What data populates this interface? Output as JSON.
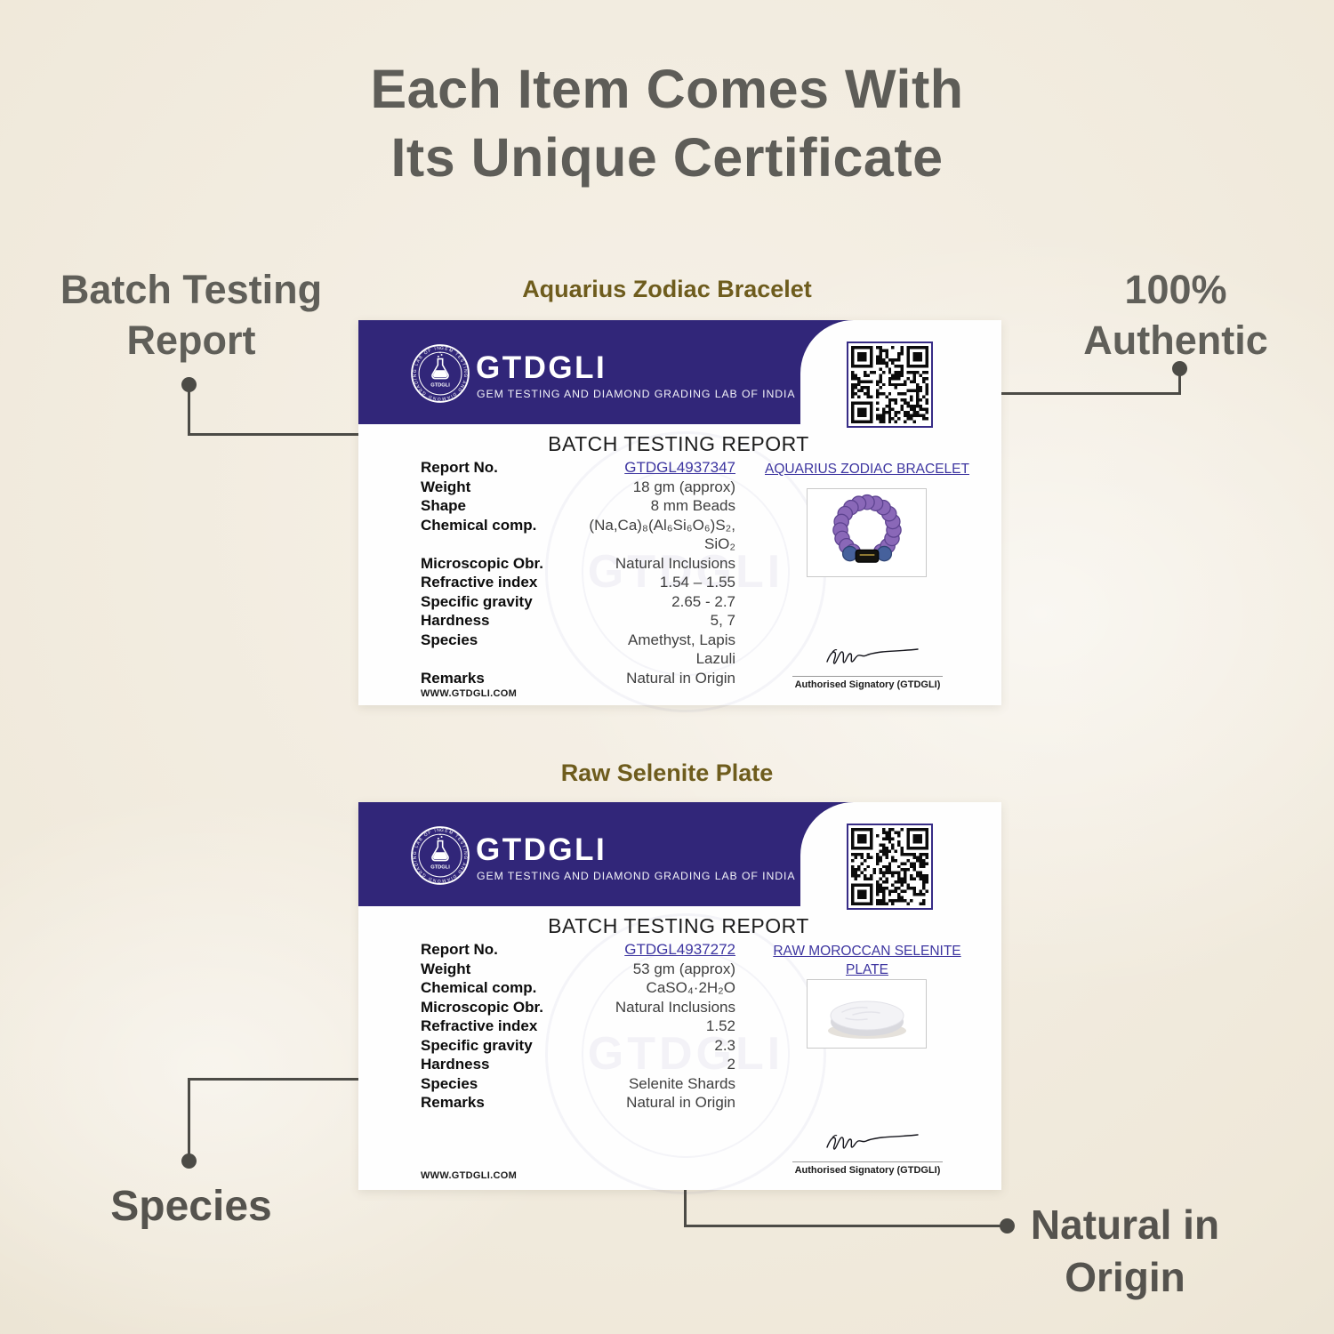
{
  "page": {
    "title_line1": "Each Item Comes With",
    "title_line2": "Its Unique Certificate"
  },
  "callouts": {
    "batch_testing": {
      "line1": "Batch Testing",
      "line2": "Report"
    },
    "authentic": {
      "line1": "100%",
      "line2": "Authentic"
    },
    "species": {
      "label": "Species"
    },
    "natural_origin": {
      "line1": "Natural in",
      "line2": "Origin"
    }
  },
  "lab": {
    "name": "GTDGLI",
    "tagline": "GEM TESTING AND DIAMOND GRADING LAB OF INDIA"
  },
  "certificates": [
    {
      "product_label": "Aquarius Zodiac Bracelet",
      "report_title": "BATCH TESTING REPORT",
      "rows": [
        {
          "label": "Report No.",
          "value": "GTDGL4937347",
          "link": true
        },
        {
          "label": "Weight",
          "value": "18 gm (approx)"
        },
        {
          "label": "Shape",
          "value": "8 mm Beads"
        },
        {
          "label": "Chemical comp.",
          "value": "(Na,Ca)₈(Al₆Si₆O₆)S₂,\nSiO₂"
        },
        {
          "label": "Microscopic Obr.",
          "value": "Natural Inclusions"
        },
        {
          "label": "Refractive index",
          "value": "1.54 – 1.55"
        },
        {
          "label": "Specific gravity",
          "value": "2.65 - 2.7"
        },
        {
          "label": "Hardness",
          "value": "5, 7"
        },
        {
          "label": "Species",
          "value": "Amethyst, Lapis\nLazuli"
        },
        {
          "label": "Remarks",
          "value": "Natural in Origin"
        }
      ],
      "item_title": "AQUARIUS ZODIAC BRACELET",
      "website": "WWW.GTDGLI.COM",
      "signatory": "Authorised Signatory (GTDGLI)"
    },
    {
      "product_label": "Raw Selenite Plate",
      "report_title": "BATCH TESTING REPORT",
      "rows": [
        {
          "label": "Report No.",
          "value": "GTDGL4937272",
          "link": true
        },
        {
          "label": "Weight",
          "value": "53 gm (approx)"
        },
        {
          "label": "Chemical comp.",
          "value": "CaSO₄·2H₂O"
        },
        {
          "label": "Microscopic Obr.",
          "value": "Natural Inclusions"
        },
        {
          "label": "Refractive index",
          "value": "1.52"
        },
        {
          "label": "Specific gravity",
          "value": "2.3"
        },
        {
          "label": "Hardness",
          "value": "2"
        },
        {
          "label": "Species",
          "value": "Selenite Shards"
        },
        {
          "label": "Remarks",
          "value": "Natural in Origin"
        }
      ],
      "item_title": "RAW MOROCCAN SELENITE PLATE",
      "website": "WWW.GTDGLI.COM",
      "signatory": "Authorised Signatory (GTDGLI)"
    }
  ],
  "colors": {
    "background_cream": "#f2ecdf",
    "band_indigo": "#312679",
    "link_purple": "#3d35a0",
    "product_label_gold": "#6e5c1d",
    "callout_gray": "#605f59",
    "line_gray": "#4c4b46"
  }
}
